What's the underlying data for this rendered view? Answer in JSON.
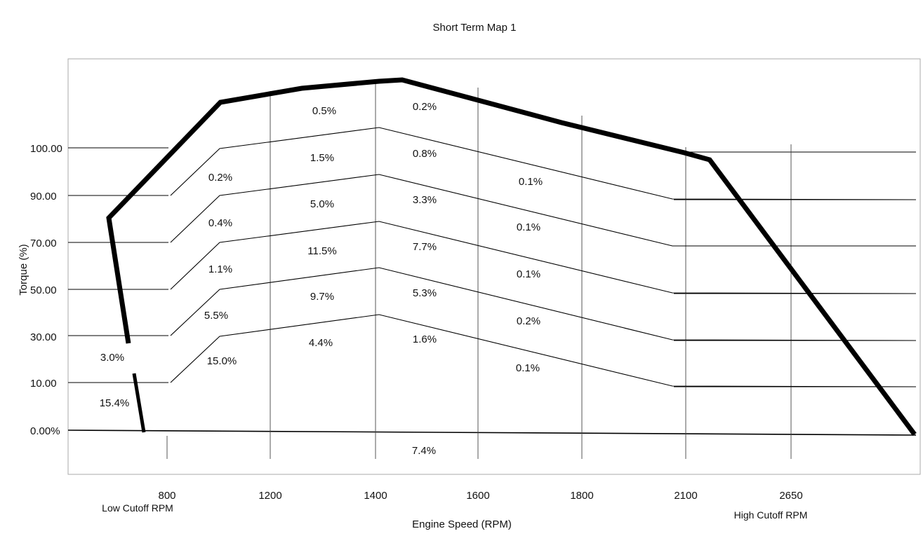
{
  "chart_data": {
    "type": "line",
    "title": "Short Term Map 1",
    "xlabel": "Engine Speed (RPM)",
    "ylabel": "Torque (%)",
    "x_ticks": [
      "800",
      "1200",
      "1400",
      "1600",
      "1800",
      "2100",
      "2650"
    ],
    "y_ticks": [
      "0.00%",
      "10.00",
      "30.00",
      "50.00",
      "70.00",
      "90.00",
      "100.00"
    ],
    "cutoff_labels": {
      "low": "Low Cutoff RPM",
      "high": "High Cutoff RPM"
    },
    "band_label_grid": {
      "columns": [
        "x1",
        "x2",
        "x3",
        "x4",
        "x5",
        "x6"
      ],
      "row_values": [
        5,
        20,
        40,
        60,
        80,
        95,
        110,
        120
      ]
    },
    "band_bounds_y": [
      10,
      30,
      50,
      70,
      90,
      100
    ],
    "colors": {
      "envelope": "#000000",
      "gridline": "#000000",
      "background": "#ffffff"
    },
    "cells": [
      {
        "label": "15.4%",
        "col": 0,
        "row": 0
      },
      {
        "label": "3.0%",
        "col": 0,
        "row": 1
      },
      {
        "label": "15.0%",
        "col": 1,
        "row": 1
      },
      {
        "label": "5.5%",
        "col": 1,
        "row": 2
      },
      {
        "label": "1.1%",
        "col": 1,
        "row": 3
      },
      {
        "label": "0.4%",
        "col": 1,
        "row": 4
      },
      {
        "label": "0.2%",
        "col": 1,
        "row": 5
      },
      {
        "label": "4.4%",
        "col": 2,
        "row": 2
      },
      {
        "label": "9.7%",
        "col": 2,
        "row": 3
      },
      {
        "label": "11.5%",
        "col": 2,
        "row": 4
      },
      {
        "label": "5.0%",
        "col": 2,
        "row": 5
      },
      {
        "label": "1.5%",
        "col": 2,
        "row": 6
      },
      {
        "label": "0.5%",
        "col": 2,
        "row": 7
      },
      {
        "label": "1.6%",
        "col": 3,
        "row": 2
      },
      {
        "label": "5.3%",
        "col": 3,
        "row": 3
      },
      {
        "label": "7.7%",
        "col": 3,
        "row": 4
      },
      {
        "label": "3.3%",
        "col": 3,
        "row": 5
      },
      {
        "label": "0.8%",
        "col": 3,
        "row": 6
      },
      {
        "label": "0.2%",
        "col": 3,
        "row": 7
      },
      {
        "label": "0.1%",
        "col": 4,
        "row": 1
      },
      {
        "label": "0.2%",
        "col": 4,
        "row": 2
      },
      {
        "label": "0.1%",
        "col": 4,
        "row": 3
      },
      {
        "label": "0.1%",
        "col": 4,
        "row": 4
      },
      {
        "label": "0.1%",
        "col": 4,
        "row": 5
      },
      {
        "label": "7.4%",
        "col": 3,
        "row": -1
      }
    ]
  }
}
